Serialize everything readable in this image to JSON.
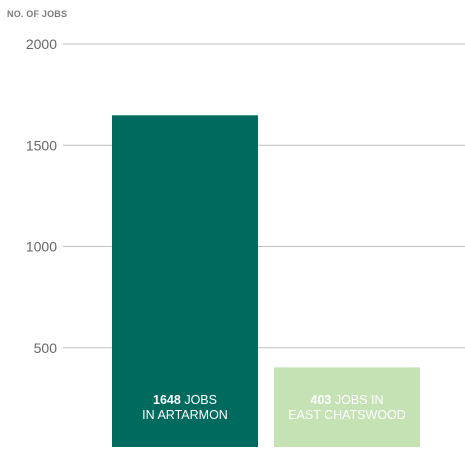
{
  "chart_data": {
    "type": "bar",
    "title": "",
    "xlabel": "",
    "ylabel": "NO. OF JOBS",
    "ylim": [
      0,
      2000
    ],
    "yticks": [
      500,
      1000,
      1500,
      2000
    ],
    "grid": true,
    "categories": [
      "ARTARMON",
      "EAST CHATSWOOD"
    ],
    "values": [
      1648,
      403
    ],
    "labels": [
      {
        "value": "1648",
        "line1_suffix": "JOBS",
        "line2": "IN ARTARMON"
      },
      {
        "value": "403",
        "line1_suffix": "JOBS IN",
        "line2": "EAST CHATSWOOD"
      }
    ],
    "colors": [
      "#006a5e",
      "#c5e2b5"
    ],
    "label_colors": [
      "#ffffff",
      "#ffffff"
    ],
    "grid_color": "#bfbfbf",
    "tick_color": "#666666"
  }
}
